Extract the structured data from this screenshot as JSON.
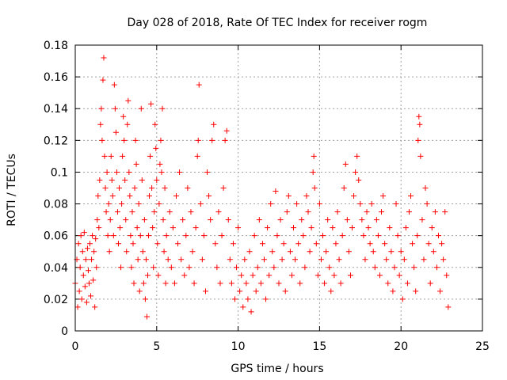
{
  "chart_data": {
    "type": "scatter",
    "title": "Day 028 of 2018, Rate Of TEC Index for receiver rogm",
    "xlabel": "GPS time / hours",
    "ylabel": "ROTI / TECUs",
    "xlim": [
      0,
      25
    ],
    "ylim": [
      0,
      0.18
    ],
    "x_ticks": [
      "0",
      "5",
      "10",
      "15",
      "20",
      "25"
    ],
    "x_tick_values": [
      0,
      5,
      10,
      15,
      20,
      25
    ],
    "y_ticks": [
      "0",
      "0.02",
      "0.04",
      "0.06",
      "0.08",
      "0.1",
      "0.12",
      "0.14",
      "0.16",
      "0.18"
    ],
    "y_tick_values": [
      0,
      0.02,
      0.04,
      0.06,
      0.08,
      0.1,
      0.12,
      0.14,
      0.16,
      0.18
    ],
    "grid": true,
    "marker": "+",
    "color": "#ff0000",
    "series": [
      {
        "name": "ROTI",
        "points": [
          [
            0.0,
            0.03
          ],
          [
            0.1,
            0.045
          ],
          [
            0.15,
            0.015
          ],
          [
            0.2,
            0.055
          ],
          [
            0.25,
            0.025
          ],
          [
            0.3,
            0.04
          ],
          [
            0.35,
            0.06
          ],
          [
            0.4,
            0.02
          ],
          [
            0.45,
            0.05
          ],
          [
            0.5,
            0.035
          ],
          [
            0.55,
            0.062
          ],
          [
            0.6,
            0.028
          ],
          [
            0.65,
            0.045
          ],
          [
            0.7,
            0.018
          ],
          [
            0.75,
            0.052
          ],
          [
            0.8,
            0.038
          ],
          [
            0.85,
            0.03
          ],
          [
            0.9,
            0.055
          ],
          [
            0.95,
            0.022
          ],
          [
            1.0,
            0.045
          ],
          [
            1.05,
            0.06
          ],
          [
            1.1,
            0.032
          ],
          [
            1.15,
            0.05
          ],
          [
            1.2,
            0.015
          ],
          [
            1.25,
            0.058
          ],
          [
            1.3,
            0.04
          ],
          [
            1.35,
            0.07
          ],
          [
            1.4,
            0.085
          ],
          [
            1.45,
            0.065
          ],
          [
            1.5,
            0.095
          ],
          [
            1.55,
            0.13
          ],
          [
            1.6,
            0.14
          ],
          [
            1.65,
            0.12
          ],
          [
            1.7,
            0.158
          ],
          [
            1.75,
            0.172
          ],
          [
            1.8,
            0.11
          ],
          [
            1.85,
            0.09
          ],
          [
            1.9,
            0.075
          ],
          [
            1.95,
            0.1
          ],
          [
            2.0,
            0.06
          ],
          [
            2.05,
            0.08
          ],
          [
            2.1,
            0.05
          ],
          [
            2.15,
            0.07
          ],
          [
            2.2,
            0.11
          ],
          [
            2.25,
            0.095
          ],
          [
            2.3,
            0.085
          ],
          [
            2.35,
            0.06
          ],
          [
            2.4,
            0.155
          ],
          [
            2.45,
            0.14
          ],
          [
            2.5,
            0.125
          ],
          [
            2.55,
            0.1
          ],
          [
            2.6,
            0.075
          ],
          [
            2.65,
            0.055
          ],
          [
            2.7,
            0.09
          ],
          [
            2.75,
            0.065
          ],
          [
            2.8,
            0.04
          ],
          [
            2.85,
            0.08
          ],
          [
            2.9,
            0.11
          ],
          [
            2.95,
            0.135
          ],
          [
            3.0,
            0.12
          ],
          [
            3.05,
            0.095
          ],
          [
            3.1,
            0.07
          ],
          [
            3.15,
            0.05
          ],
          [
            3.2,
            0.13
          ],
          [
            3.25,
            0.145
          ],
          [
            3.3,
            0.1
          ],
          [
            3.35,
            0.085
          ],
          [
            3.4,
            0.06
          ],
          [
            3.45,
            0.04
          ],
          [
            3.5,
            0.075
          ],
          [
            3.55,
            0.055
          ],
          [
            3.6,
            0.03
          ],
          [
            3.65,
            0.09
          ],
          [
            3.7,
            0.12
          ],
          [
            3.75,
            0.105
          ],
          [
            3.8,
            0.065
          ],
          [
            3.85,
            0.045
          ],
          [
            3.9,
            0.08
          ],
          [
            3.95,
            0.025
          ],
          [
            4.0,
            0.06
          ],
          [
            4.05,
            0.14
          ],
          [
            4.1,
            0.095
          ],
          [
            4.15,
            0.05
          ],
          [
            4.2,
            0.03
          ],
          [
            4.25,
            0.07
          ],
          [
            4.3,
            0.02
          ],
          [
            4.35,
            0.045
          ],
          [
            4.4,
            0.009
          ],
          [
            4.45,
            0.035
          ],
          [
            4.5,
            0.06
          ],
          [
            4.55,
            0.085
          ],
          [
            4.6,
            0.11
          ],
          [
            4.65,
            0.143
          ],
          [
            4.7,
            0.09
          ],
          [
            4.75,
            0.065
          ],
          [
            4.8,
            0.04
          ],
          [
            4.85,
            0.075
          ],
          [
            4.9,
            0.13
          ],
          [
            4.95,
            0.115
          ],
          [
            5.0,
            0.095
          ],
          [
            5.05,
            0.055
          ],
          [
            5.1,
            0.035
          ],
          [
            5.15,
            0.08
          ],
          [
            5.2,
            0.105
          ],
          [
            5.25,
            0.12
          ],
          [
            5.3,
            0.1
          ],
          [
            5.35,
            0.14
          ],
          [
            5.4,
            0.07
          ],
          [
            5.45,
            0.05
          ],
          [
            5.5,
            0.09
          ],
          [
            5.55,
            0.03
          ],
          [
            5.6,
            0.06
          ],
          [
            5.7,
            0.045
          ],
          [
            5.8,
            0.075
          ],
          [
            5.9,
            0.04
          ],
          [
            6.0,
            0.065
          ],
          [
            6.1,
            0.03
          ],
          [
            6.2,
            0.085
          ],
          [
            6.3,
            0.055
          ],
          [
            6.4,
            0.1
          ],
          [
            6.5,
            0.045
          ],
          [
            6.6,
            0.07
          ],
          [
            6.7,
            0.035
          ],
          [
            6.8,
            0.06
          ],
          [
            6.9,
            0.09
          ],
          [
            7.0,
            0.04
          ],
          [
            7.1,
            0.075
          ],
          [
            7.2,
            0.05
          ],
          [
            7.3,
            0.03
          ],
          [
            7.4,
            0.065
          ],
          [
            7.5,
            0.11
          ],
          [
            7.55,
            0.12
          ],
          [
            7.6,
            0.155
          ],
          [
            7.7,
            0.08
          ],
          [
            7.8,
            0.045
          ],
          [
            7.9,
            0.06
          ],
          [
            8.0,
            0.025
          ],
          [
            8.1,
            0.1
          ],
          [
            8.2,
            0.085
          ],
          [
            8.3,
            0.07
          ],
          [
            8.4,
            0.12
          ],
          [
            8.5,
            0.13
          ],
          [
            8.6,
            0.055
          ],
          [
            8.7,
            0.04
          ],
          [
            8.8,
            0.075
          ],
          [
            8.9,
            0.03
          ],
          [
            9.0,
            0.06
          ],
          [
            9.1,
            0.09
          ],
          [
            9.2,
            0.12
          ],
          [
            9.3,
            0.126
          ],
          [
            9.4,
            0.07
          ],
          [
            9.5,
            0.045
          ],
          [
            9.6,
            0.03
          ],
          [
            9.7,
            0.055
          ],
          [
            9.8,
            0.02
          ],
          [
            9.9,
            0.04
          ],
          [
            10.0,
            0.065
          ],
          [
            10.1,
            0.025
          ],
          [
            10.2,
            0.035
          ],
          [
            10.3,
            0.015
          ],
          [
            10.4,
            0.045
          ],
          [
            10.5,
            0.03
          ],
          [
            10.6,
            0.02
          ],
          [
            10.7,
            0.05
          ],
          [
            10.8,
            0.012
          ],
          [
            10.9,
            0.035
          ],
          [
            11.0,
            0.06
          ],
          [
            11.1,
            0.025
          ],
          [
            11.2,
            0.04
          ],
          [
            11.3,
            0.07
          ],
          [
            11.4,
            0.03
          ],
          [
            11.5,
            0.055
          ],
          [
            11.6,
            0.045
          ],
          [
            11.7,
            0.02
          ],
          [
            11.8,
            0.065
          ],
          [
            11.9,
            0.035
          ],
          [
            12.0,
            0.08
          ],
          [
            12.1,
            0.05
          ],
          [
            12.2,
            0.04
          ],
          [
            12.3,
            0.088
          ],
          [
            12.4,
            0.06
          ],
          [
            12.5,
            0.03
          ],
          [
            12.6,
            0.07
          ],
          [
            12.7,
            0.045
          ],
          [
            12.8,
            0.055
          ],
          [
            12.9,
            0.025
          ],
          [
            13.0,
            0.075
          ],
          [
            13.1,
            0.085
          ],
          [
            13.2,
            0.05
          ],
          [
            13.3,
            0.035
          ],
          [
            13.4,
            0.065
          ],
          [
            13.5,
            0.045
          ],
          [
            13.6,
            0.08
          ],
          [
            13.7,
            0.055
          ],
          [
            13.8,
            0.03
          ],
          [
            13.9,
            0.07
          ],
          [
            14.0,
            0.06
          ],
          [
            14.1,
            0.04
          ],
          [
            14.2,
            0.085
          ],
          [
            14.3,
            0.075
          ],
          [
            14.4,
            0.05
          ],
          [
            14.5,
            0.065
          ],
          [
            14.6,
            0.1
          ],
          [
            14.65,
            0.11
          ],
          [
            14.7,
            0.09
          ],
          [
            14.8,
            0.055
          ],
          [
            14.9,
            0.035
          ],
          [
            15.0,
            0.08
          ],
          [
            15.1,
            0.045
          ],
          [
            15.2,
            0.06
          ],
          [
            15.3,
            0.03
          ],
          [
            15.4,
            0.05
          ],
          [
            15.5,
            0.07
          ],
          [
            15.6,
            0.04
          ],
          [
            15.7,
            0.025
          ],
          [
            15.8,
            0.065
          ],
          [
            15.9,
            0.035
          ],
          [
            16.0,
            0.055
          ],
          [
            16.1,
            0.075
          ],
          [
            16.2,
            0.045
          ],
          [
            16.3,
            0.03
          ],
          [
            16.4,
            0.06
          ],
          [
            16.5,
            0.09
          ],
          [
            16.6,
            0.105
          ],
          [
            16.7,
            0.07
          ],
          [
            16.8,
            0.05
          ],
          [
            16.9,
            0.035
          ],
          [
            17.0,
            0.065
          ],
          [
            17.1,
            0.085
          ],
          [
            17.2,
            0.1
          ],
          [
            17.3,
            0.11
          ],
          [
            17.4,
            0.095
          ],
          [
            17.5,
            0.08
          ],
          [
            17.6,
            0.07
          ],
          [
            17.7,
            0.06
          ],
          [
            17.8,
            0.045
          ],
          [
            17.9,
            0.075
          ],
          [
            18.0,
            0.065
          ],
          [
            18.1,
            0.055
          ],
          [
            18.2,
            0.08
          ],
          [
            18.3,
            0.05
          ],
          [
            18.4,
            0.04
          ],
          [
            18.5,
            0.07
          ],
          [
            18.6,
            0.06
          ],
          [
            18.7,
            0.035
          ],
          [
            18.8,
            0.075
          ],
          [
            18.9,
            0.085
          ],
          [
            19.0,
            0.055
          ],
          [
            19.1,
            0.045
          ],
          [
            19.2,
            0.03
          ],
          [
            19.3,
            0.065
          ],
          [
            19.4,
            0.05
          ],
          [
            19.5,
            0.025
          ],
          [
            19.6,
            0.04
          ],
          [
            19.7,
            0.08
          ],
          [
            19.8,
            0.06
          ],
          [
            19.9,
            0.035
          ],
          [
            20.0,
            0.05
          ],
          [
            20.1,
            0.02
          ],
          [
            20.2,
            0.045
          ],
          [
            20.3,
            0.065
          ],
          [
            20.4,
            0.03
          ],
          [
            20.5,
            0.075
          ],
          [
            20.6,
            0.085
          ],
          [
            20.7,
            0.055
          ],
          [
            20.8,
            0.04
          ],
          [
            20.9,
            0.025
          ],
          [
            21.0,
            0.06
          ],
          [
            21.05,
            0.12
          ],
          [
            21.1,
            0.135
          ],
          [
            21.15,
            0.13
          ],
          [
            21.2,
            0.11
          ],
          [
            21.3,
            0.07
          ],
          [
            21.4,
            0.045
          ],
          [
            21.5,
            0.09
          ],
          [
            21.6,
            0.08
          ],
          [
            21.7,
            0.055
          ],
          [
            21.8,
            0.03
          ],
          [
            21.9,
            0.065
          ],
          [
            22.0,
            0.05
          ],
          [
            22.1,
            0.075
          ],
          [
            22.2,
            0.04
          ],
          [
            22.3,
            0.06
          ],
          [
            22.4,
            0.025
          ],
          [
            22.5,
            0.055
          ],
          [
            22.6,
            0.045
          ],
          [
            22.7,
            0.075
          ],
          [
            22.8,
            0.035
          ],
          [
            22.9,
            0.015
          ]
        ]
      }
    ]
  }
}
